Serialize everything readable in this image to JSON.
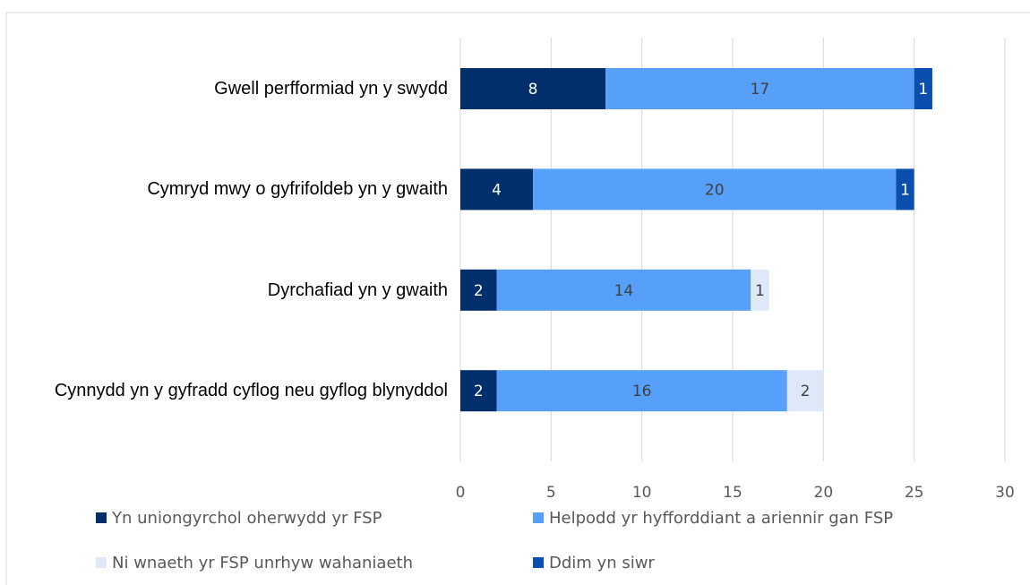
{
  "chart_data": {
    "type": "stacked_barh",
    "categories": [
      "Gwell perfformiad yn y swydd",
      "Cymryd mwy o gyfrifoldeb yn y gwaith",
      "Dyrchafiad yn y gwaith",
      "Cynnydd yn y gyfradd cyflog neu gyflog blynyddol"
    ],
    "series": [
      {
        "name": "Yn uniongyrchol oherwydd yr FSP",
        "color": "#002f6c",
        "values": [
          8,
          4,
          2,
          2
        ]
      },
      {
        "name": "Helpodd yr hyfforddiant a ariennir gan FSP",
        "color": "#56a0fa",
        "values": [
          17,
          20,
          14,
          16
        ]
      },
      {
        "name": "Ni wnaeth yr FSP unrhyw wahaniaeth",
        "color": "#dde9f9",
        "values": [
          null,
          null,
          1,
          2
        ]
      },
      {
        "name": "Ddim yn siwr",
        "color": "#0b4fae",
        "values": [
          1,
          1,
          null,
          null
        ]
      }
    ],
    "xlim": [
      0,
      30
    ],
    "xticks": [
      0,
      5,
      10,
      15,
      20,
      25,
      30
    ],
    "grid": true,
    "legend": "bottom"
  }
}
